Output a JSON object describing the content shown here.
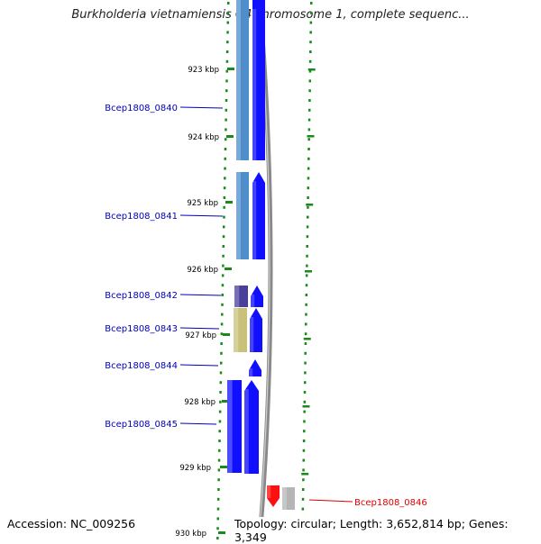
{
  "title": "Burkholderia vietnamiensis G4 chromosome 1, complete sequenc...",
  "footer": {
    "accession": "Accession: NC_009256",
    "topology": "Topology: circular; Length: 3,652,814 bp; Genes: 3,349"
  },
  "colors": {
    "forward_gene": "#1010ff",
    "reverse_gene": "#ff1010",
    "label_forward": "#0000bb",
    "label_reverse": "#dd0000",
    "tick": "#1a8a1a",
    "backbone": "#8a8a8a"
  },
  "ticks": [
    {
      "label": "923 kbp",
      "kbp": 923
    },
    {
      "label": "924 kbp",
      "kbp": 924
    },
    {
      "label": "925 kbp",
      "kbp": 925
    },
    {
      "label": "926 kbp",
      "kbp": 926
    },
    {
      "label": "927 kbp",
      "kbp": 927
    },
    {
      "label": "928 kbp",
      "kbp": 928
    },
    {
      "label": "929 kbp",
      "kbp": 929
    },
    {
      "label": "930 kbp",
      "kbp": 930
    }
  ],
  "genes": [
    {
      "name": "Bcep1808_0840",
      "strand": "forward",
      "feature_color": "#4f8ecb"
    },
    {
      "name": "Bcep1808_0841",
      "strand": "forward",
      "feature_color": "#4f8ecb"
    },
    {
      "name": "Bcep1808_0842",
      "strand": "forward",
      "feature_color": "#4a3f9a"
    },
    {
      "name": "Bcep1808_0843",
      "strand": "forward",
      "feature_color": "#c9c07a"
    },
    {
      "name": "Bcep1808_0844",
      "strand": "forward",
      "feature_color": null
    },
    {
      "name": "Bcep1808_0845",
      "strand": "forward",
      "feature_color": "#1010ff"
    },
    {
      "name": "Bcep1808_0846",
      "strand": "reverse",
      "feature_color": "#b5b5b5"
    }
  ]
}
